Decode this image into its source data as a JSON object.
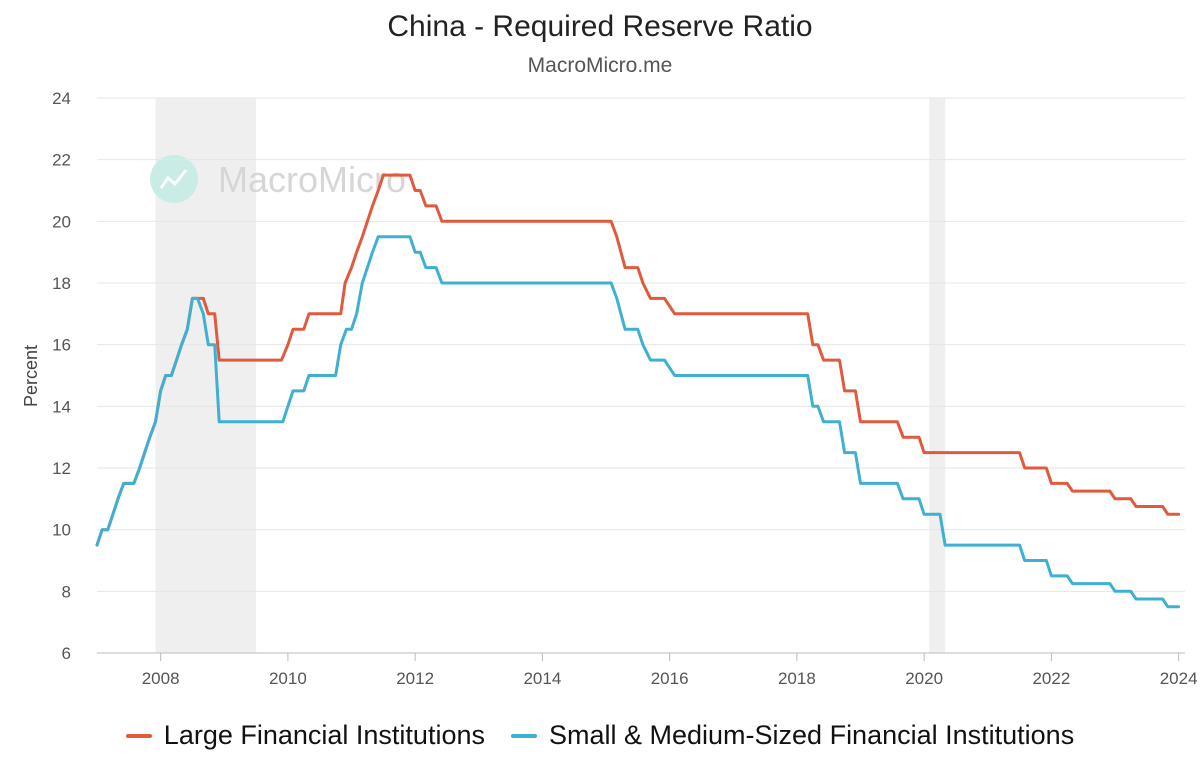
{
  "title": "China - Required Reserve Ratio",
  "subtitle": "MacroMicro.me",
  "watermark": "MacroMicro",
  "colors": {
    "large": "#e05a3e",
    "small": "#3fb0d3",
    "shade": "#efefef",
    "grid": "#e6e6e6"
  },
  "chart_data": {
    "type": "line",
    "ylabel": "Percent",
    "xlabel": "",
    "xlim": [
      2007.0,
      2024.1
    ],
    "ylim": [
      6,
      24
    ],
    "yticks": [
      6,
      8,
      10,
      12,
      14,
      16,
      18,
      20,
      22,
      24
    ],
    "xticks": [
      2008,
      2010,
      2012,
      2014,
      2016,
      2018,
      2020,
      2022,
      2024
    ],
    "grid": "horizontal",
    "legend_position": "bottom",
    "shaded_periods": [
      [
        2007.92,
        2009.5
      ],
      [
        2020.08,
        2020.33
      ]
    ],
    "series": [
      {
        "name": "Large Financial Institutions",
        "color": "#e05a3e",
        "points": [
          [
            2007.0,
            9.5
          ],
          [
            2007.08,
            10.0
          ],
          [
            2007.17,
            10.0
          ],
          [
            2007.25,
            10.5
          ],
          [
            2007.33,
            11.0
          ],
          [
            2007.42,
            11.5
          ],
          [
            2007.58,
            11.5
          ],
          [
            2007.67,
            12.0
          ],
          [
            2007.75,
            12.5
          ],
          [
            2007.83,
            13.0
          ],
          [
            2007.92,
            13.5
          ],
          [
            2008.0,
            14.5
          ],
          [
            2008.08,
            15.0
          ],
          [
            2008.17,
            15.0
          ],
          [
            2008.25,
            15.5
          ],
          [
            2008.33,
            16.0
          ],
          [
            2008.42,
            16.5
          ],
          [
            2008.5,
            17.5
          ],
          [
            2008.67,
            17.5
          ],
          [
            2008.75,
            17.0
          ],
          [
            2008.85,
            17.0
          ],
          [
            2008.92,
            15.5
          ],
          [
            2009.9,
            15.5
          ],
          [
            2010.0,
            16.0
          ],
          [
            2010.08,
            16.5
          ],
          [
            2010.25,
            16.5
          ],
          [
            2010.33,
            17.0
          ],
          [
            2010.83,
            17.0
          ],
          [
            2010.9,
            18.0
          ],
          [
            2011.0,
            18.5
          ],
          [
            2011.08,
            19.0
          ],
          [
            2011.17,
            19.5
          ],
          [
            2011.25,
            20.0
          ],
          [
            2011.33,
            20.5
          ],
          [
            2011.42,
            21.0
          ],
          [
            2011.5,
            21.5
          ],
          [
            2011.92,
            21.5
          ],
          [
            2012.0,
            21.0
          ],
          [
            2012.08,
            21.0
          ],
          [
            2012.17,
            20.5
          ],
          [
            2012.33,
            20.5
          ],
          [
            2012.42,
            20.0
          ],
          [
            2015.08,
            20.0
          ],
          [
            2015.17,
            19.5
          ],
          [
            2015.3,
            18.5
          ],
          [
            2015.5,
            18.5
          ],
          [
            2015.58,
            18.0
          ],
          [
            2015.7,
            17.5
          ],
          [
            2015.92,
            17.5
          ],
          [
            2016.08,
            17.0
          ],
          [
            2018.17,
            17.0
          ],
          [
            2018.25,
            16.0
          ],
          [
            2018.33,
            16.0
          ],
          [
            2018.42,
            15.5
          ],
          [
            2018.67,
            15.5
          ],
          [
            2018.75,
            14.5
          ],
          [
            2018.92,
            14.5
          ],
          [
            2019.0,
            13.5
          ],
          [
            2019.58,
            13.5
          ],
          [
            2019.67,
            13.0
          ],
          [
            2019.92,
            13.0
          ],
          [
            2020.0,
            12.5
          ],
          [
            2021.5,
            12.5
          ],
          [
            2021.58,
            12.0
          ],
          [
            2021.92,
            12.0
          ],
          [
            2022.0,
            11.5
          ],
          [
            2022.25,
            11.5
          ],
          [
            2022.33,
            11.25
          ],
          [
            2022.92,
            11.25
          ],
          [
            2023.0,
            11.0
          ],
          [
            2023.25,
            11.0
          ],
          [
            2023.33,
            10.75
          ],
          [
            2023.75,
            10.75
          ],
          [
            2023.83,
            10.5
          ],
          [
            2024.0,
            10.5
          ]
        ]
      },
      {
        "name": "Small & Medium-Sized Financial Institutions",
        "color": "#3fb0d3",
        "points": [
          [
            2007.0,
            9.5
          ],
          [
            2007.08,
            10.0
          ],
          [
            2007.17,
            10.0
          ],
          [
            2007.25,
            10.5
          ],
          [
            2007.33,
            11.0
          ],
          [
            2007.42,
            11.5
          ],
          [
            2007.58,
            11.5
          ],
          [
            2007.67,
            12.0
          ],
          [
            2007.75,
            12.5
          ],
          [
            2007.83,
            13.0
          ],
          [
            2007.92,
            13.5
          ],
          [
            2008.0,
            14.5
          ],
          [
            2008.08,
            15.0
          ],
          [
            2008.17,
            15.0
          ],
          [
            2008.25,
            15.5
          ],
          [
            2008.33,
            16.0
          ],
          [
            2008.42,
            16.5
          ],
          [
            2008.5,
            17.5
          ],
          [
            2008.58,
            17.5
          ],
          [
            2008.67,
            17.0
          ],
          [
            2008.75,
            16.0
          ],
          [
            2008.85,
            16.0
          ],
          [
            2008.92,
            13.5
          ],
          [
            2009.92,
            13.5
          ],
          [
            2010.0,
            14.0
          ],
          [
            2010.08,
            14.5
          ],
          [
            2010.25,
            14.5
          ],
          [
            2010.33,
            15.0
          ],
          [
            2010.75,
            15.0
          ],
          [
            2010.83,
            16.0
          ],
          [
            2010.92,
            16.5
          ],
          [
            2011.0,
            16.5
          ],
          [
            2011.08,
            17.0
          ],
          [
            2011.17,
            18.0
          ],
          [
            2011.25,
            18.5
          ],
          [
            2011.33,
            19.0
          ],
          [
            2011.42,
            19.5
          ],
          [
            2011.92,
            19.5
          ],
          [
            2012.0,
            19.0
          ],
          [
            2012.08,
            19.0
          ],
          [
            2012.17,
            18.5
          ],
          [
            2012.33,
            18.5
          ],
          [
            2012.42,
            18.0
          ],
          [
            2015.08,
            18.0
          ],
          [
            2015.17,
            17.5
          ],
          [
            2015.3,
            16.5
          ],
          [
            2015.5,
            16.5
          ],
          [
            2015.58,
            16.0
          ],
          [
            2015.7,
            15.5
          ],
          [
            2015.92,
            15.5
          ],
          [
            2016.08,
            15.0
          ],
          [
            2018.17,
            15.0
          ],
          [
            2018.25,
            14.0
          ],
          [
            2018.33,
            14.0
          ],
          [
            2018.42,
            13.5
          ],
          [
            2018.67,
            13.5
          ],
          [
            2018.75,
            12.5
          ],
          [
            2018.92,
            12.5
          ],
          [
            2019.0,
            11.5
          ],
          [
            2019.58,
            11.5
          ],
          [
            2019.67,
            11.0
          ],
          [
            2019.92,
            11.0
          ],
          [
            2020.0,
            10.5
          ],
          [
            2020.08,
            10.5
          ],
          [
            2020.25,
            10.5
          ],
          [
            2020.33,
            9.5
          ],
          [
            2021.5,
            9.5
          ],
          [
            2021.58,
            9.0
          ],
          [
            2021.92,
            9.0
          ],
          [
            2022.0,
            8.5
          ],
          [
            2022.25,
            8.5
          ],
          [
            2022.33,
            8.25
          ],
          [
            2022.92,
            8.25
          ],
          [
            2023.0,
            8.0
          ],
          [
            2023.25,
            8.0
          ],
          [
            2023.33,
            7.75
          ],
          [
            2023.75,
            7.75
          ],
          [
            2023.83,
            7.5
          ],
          [
            2024.0,
            7.5
          ]
        ]
      }
    ]
  }
}
